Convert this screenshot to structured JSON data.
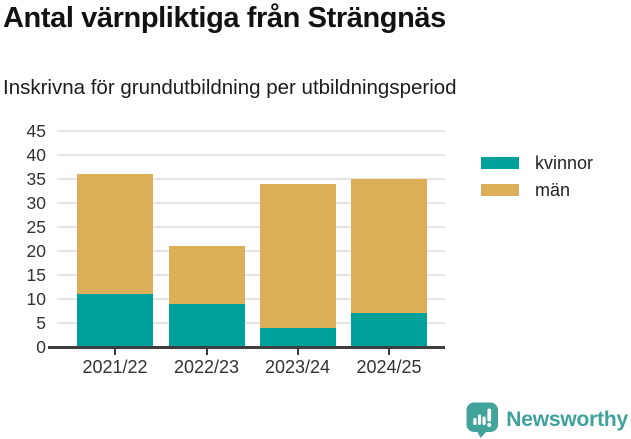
{
  "title": "Antal värnpliktiga från Strängnäs",
  "subtitle": "Inskrivna för grundutbildning per utbildningsperiod",
  "chart_data": {
    "type": "bar",
    "stacked": true,
    "title": "Antal värnpliktiga från Strängnäs",
    "subtitle": "Inskrivna för grundutbildning per utbildningsperiod",
    "categories": [
      "2021/22",
      "2022/23",
      "2023/24",
      "2024/25"
    ],
    "series": [
      {
        "name": "kvinnor",
        "color": "#00a19a",
        "values": [
          11,
          9,
          4,
          7
        ]
      },
      {
        "name": "män",
        "color": "#dcae58",
        "values": [
          25,
          12,
          30,
          28
        ]
      }
    ],
    "stack_totals": [
      36,
      21,
      34,
      35
    ],
    "xlabel": "",
    "ylabel": "",
    "ylim": [
      0,
      45
    ],
    "yticks": [
      0,
      5,
      10,
      15,
      20,
      25,
      30,
      35,
      40,
      45
    ],
    "grid": true,
    "legend_position": "top-right"
  },
  "colors": {
    "series_kvinnor": "#00a19a",
    "series_man": "#dcae58",
    "gridline": "#e4e4e4",
    "axis": "#3e3e3e",
    "tick_text": "#333333",
    "brand_teal": "#3fa39b"
  },
  "footer": {
    "brand": "Newsworthy"
  }
}
